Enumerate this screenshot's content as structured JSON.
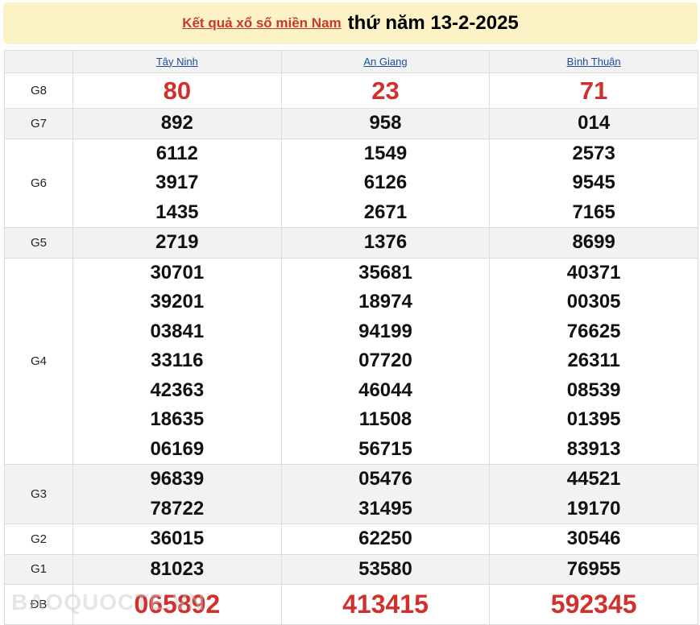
{
  "header": {
    "link_label": "Kết quả xổ số miền Nam",
    "date_label": "thứ năm 13-2-2025"
  },
  "provinces": [
    "Tây Ninh",
    "An Giang",
    "Bình Thuận"
  ],
  "prizes": [
    {
      "label": "G8",
      "highlight": true,
      "values": [
        [
          "80"
        ],
        [
          "23"
        ],
        [
          "71"
        ]
      ]
    },
    {
      "label": "G7",
      "values": [
        [
          "892"
        ],
        [
          "958"
        ],
        [
          "014"
        ]
      ]
    },
    {
      "label": "G6",
      "values": [
        [
          "6112",
          "3917",
          "1435"
        ],
        [
          "1549",
          "6126",
          "2671"
        ],
        [
          "2573",
          "9545",
          "7165"
        ]
      ]
    },
    {
      "label": "G5",
      "values": [
        [
          "2719"
        ],
        [
          "1376"
        ],
        [
          "8699"
        ]
      ]
    },
    {
      "label": "G4",
      "values": [
        [
          "30701",
          "39201",
          "03841",
          "33116",
          "42363",
          "18635",
          "06169"
        ],
        [
          "35681",
          "18974",
          "94199",
          "07720",
          "46044",
          "11508",
          "56715"
        ],
        [
          "40371",
          "00305",
          "76625",
          "26311",
          "08539",
          "01395",
          "83913"
        ]
      ]
    },
    {
      "label": "G3",
      "values": [
        [
          "96839",
          "78722"
        ],
        [
          "05476",
          "31495"
        ],
        [
          "44521",
          "19170"
        ]
      ]
    },
    {
      "label": "G2",
      "values": [
        [
          "36015"
        ],
        [
          "62250"
        ],
        [
          "30546"
        ]
      ]
    },
    {
      "label": "G1",
      "values": [
        [
          "81023"
        ],
        [
          "53580"
        ],
        [
          "76955"
        ]
      ]
    },
    {
      "label": "ĐB",
      "highlight": true,
      "values": [
        [
          "065892"
        ],
        [
          "413415"
        ],
        [
          "592345"
        ]
      ]
    }
  ],
  "watermark": "BAOQUOCTE.VN",
  "colors": {
    "highlight": "#d0312d",
    "link": "#1a4d9c",
    "title_bg": "#fbf3c5"
  }
}
